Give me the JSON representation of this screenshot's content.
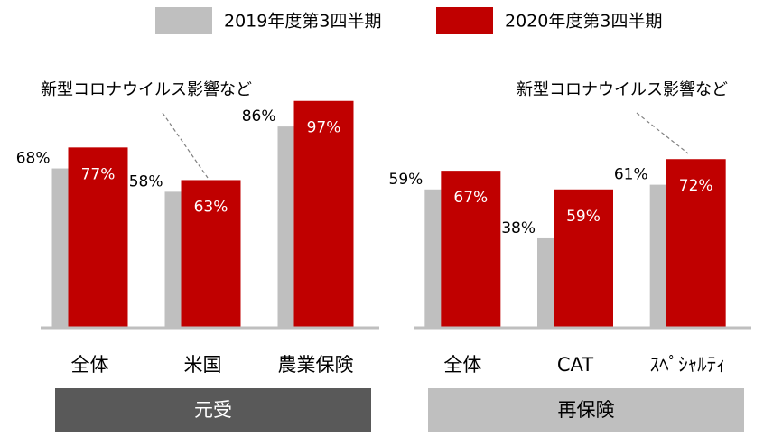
{
  "chart_data": [
    {
      "type": "bar",
      "group_label": "元受",
      "categories": [
        "全体",
        "米国",
        "農業保険"
      ],
      "series": [
        {
          "name": "2019年度第3四半期",
          "color": "#bfbfbf",
          "values": [
            68,
            58,
            86
          ],
          "value_labels": [
            "68%",
            "58%",
            "86%"
          ]
        },
        {
          "name": "2020年度第3四半期",
          "color": "#c00000",
          "values": [
            77,
            63,
            97
          ],
          "value_labels": [
            "77%",
            "63%",
            "97%"
          ]
        }
      ],
      "ylim": [
        0,
        100
      ],
      "annotation": "新型コロナウイルス影響など"
    },
    {
      "type": "bar",
      "group_label": "再保険",
      "categories": [
        "全体",
        "CAT",
        "ｽﾍﾟｼｬﾙﾃｨ"
      ],
      "series": [
        {
          "color": "#bfbfbf",
          "values": [
            59,
            38,
            61
          ],
          "value_labels": [
            "59%",
            "38%",
            "61%"
          ]
        },
        {
          "color": "#c00000",
          "values": [
            67,
            59,
            72
          ],
          "value_labels": [
            "67%",
            "59%",
            "72%"
          ]
        }
      ],
      "ylim": [
        0,
        100
      ],
      "annotation": "新型コロナウイルス影響など"
    }
  ]
}
